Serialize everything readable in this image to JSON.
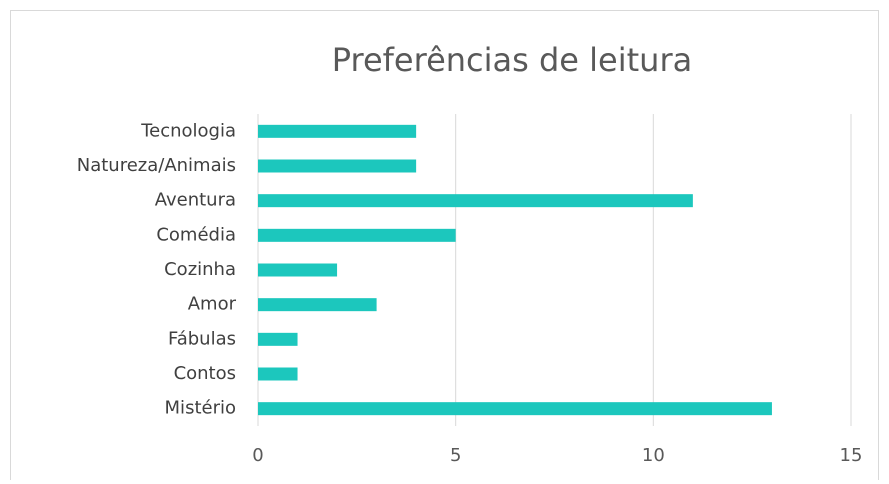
{
  "chart_data": {
    "type": "bar",
    "orientation": "horizontal",
    "title": "Preferências de leitura",
    "categories": [
      "Tecnologia",
      "Natureza/Animais",
      "Aventura",
      "Comédia",
      "Cozinha",
      "Amor",
      "Fábulas",
      "Contos",
      "Mistério"
    ],
    "values": [
      4,
      4,
      11,
      5,
      2,
      3,
      1,
      1,
      13
    ],
    "color": "#1cc7bd",
    "xlim": [
      0,
      15
    ],
    "xticks": [
      0,
      5,
      10,
      15
    ],
    "grid": true
  }
}
